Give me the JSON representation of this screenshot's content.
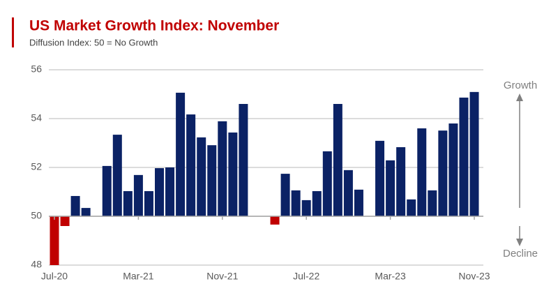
{
  "chart_data": {
    "type": "bar",
    "title": "US Market Growth Index: November",
    "subtitle": "Diffusion Index: 50 = No Growth",
    "categories": [
      "Jul-20",
      null,
      null,
      null,
      null,
      null,
      null,
      null,
      "Mar-21",
      null,
      null,
      null,
      null,
      null,
      null,
      null,
      "Nov-21",
      null,
      null,
      null,
      null,
      null,
      null,
      null,
      "Jul-22",
      null,
      null,
      null,
      null,
      null,
      null,
      null,
      "Mar-23",
      null,
      null,
      null,
      null,
      null,
      null,
      null,
      "Nov-23"
    ],
    "values": [
      48.0,
      49.6,
      50.83,
      50.34,
      null,
      52.06,
      53.34,
      51.03,
      51.69,
      51.03,
      51.97,
      52.0,
      55.06,
      54.17,
      53.23,
      52.91,
      53.89,
      53.43,
      54.6,
      null,
      null,
      49.66,
      51.74,
      51.06,
      50.66,
      51.03,
      52.66,
      54.6,
      51.89,
      51.09,
      null,
      53.09,
      52.29,
      52.83,
      50.69,
      53.6,
      51.06,
      53.51,
      53.8,
      54.86,
      55.09
    ],
    "color": "#0b2265",
    "below_color": "#c00000",
    "baseline": 50,
    "ylim": [
      48,
      56
    ],
    "yticks": [
      48,
      50,
      52,
      54,
      56
    ],
    "grid": true,
    "annotations": [
      "Growth",
      "Decline"
    ]
  }
}
